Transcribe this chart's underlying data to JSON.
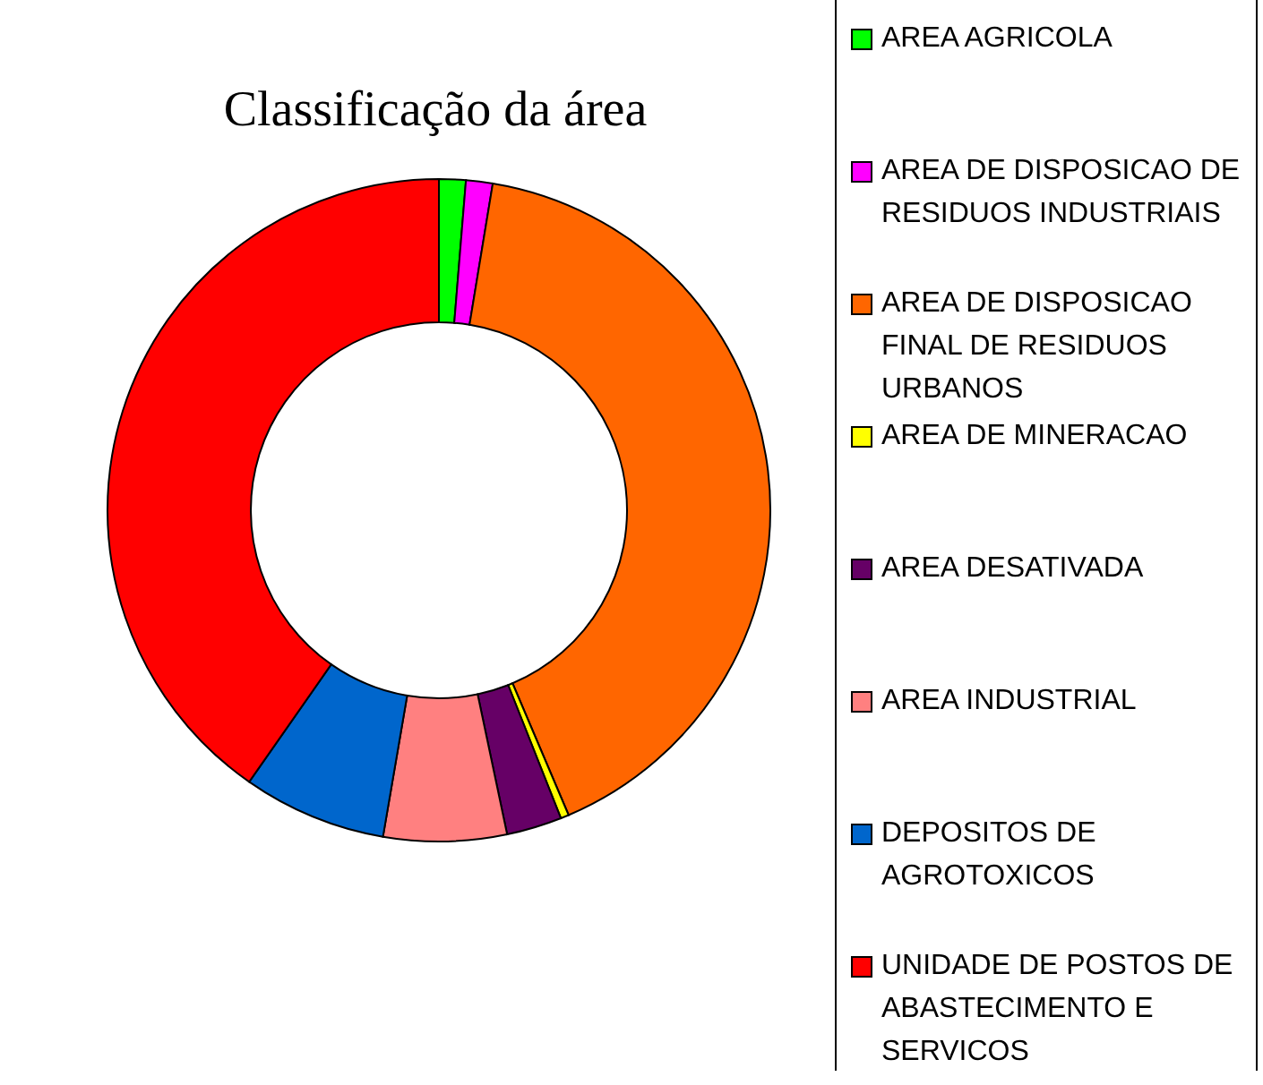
{
  "chart_data": {
    "type": "donut",
    "title": "Classificação da área",
    "categories": [
      "AREA AGRICOLA",
      "AREA DE DISPOSICAO DE RESIDUOS INDUSTRIAIS",
      "AREA DE DISPOSICAO FINAL DE RESIDUOS URBANOS",
      "AREA DE MINERACAO",
      "AREA DESATIVADA",
      "AREA INDUSTRIAL",
      "DEPOSITOS DE AGROTOXICOS",
      "UNIDADE DE POSTOS DE ABASTECIMENTO E SERVICOS"
    ],
    "values": [
      1.3,
      1.3,
      41,
      0.4,
      2.7,
      6,
      7,
      40.3
    ],
    "colors": [
      "#00ff00",
      "#ff00ff",
      "#ff6600",
      "#ffff00",
      "#660066",
      "#ff8080",
      "#0066cc",
      "#ff0000"
    ],
    "legend": "right"
  }
}
